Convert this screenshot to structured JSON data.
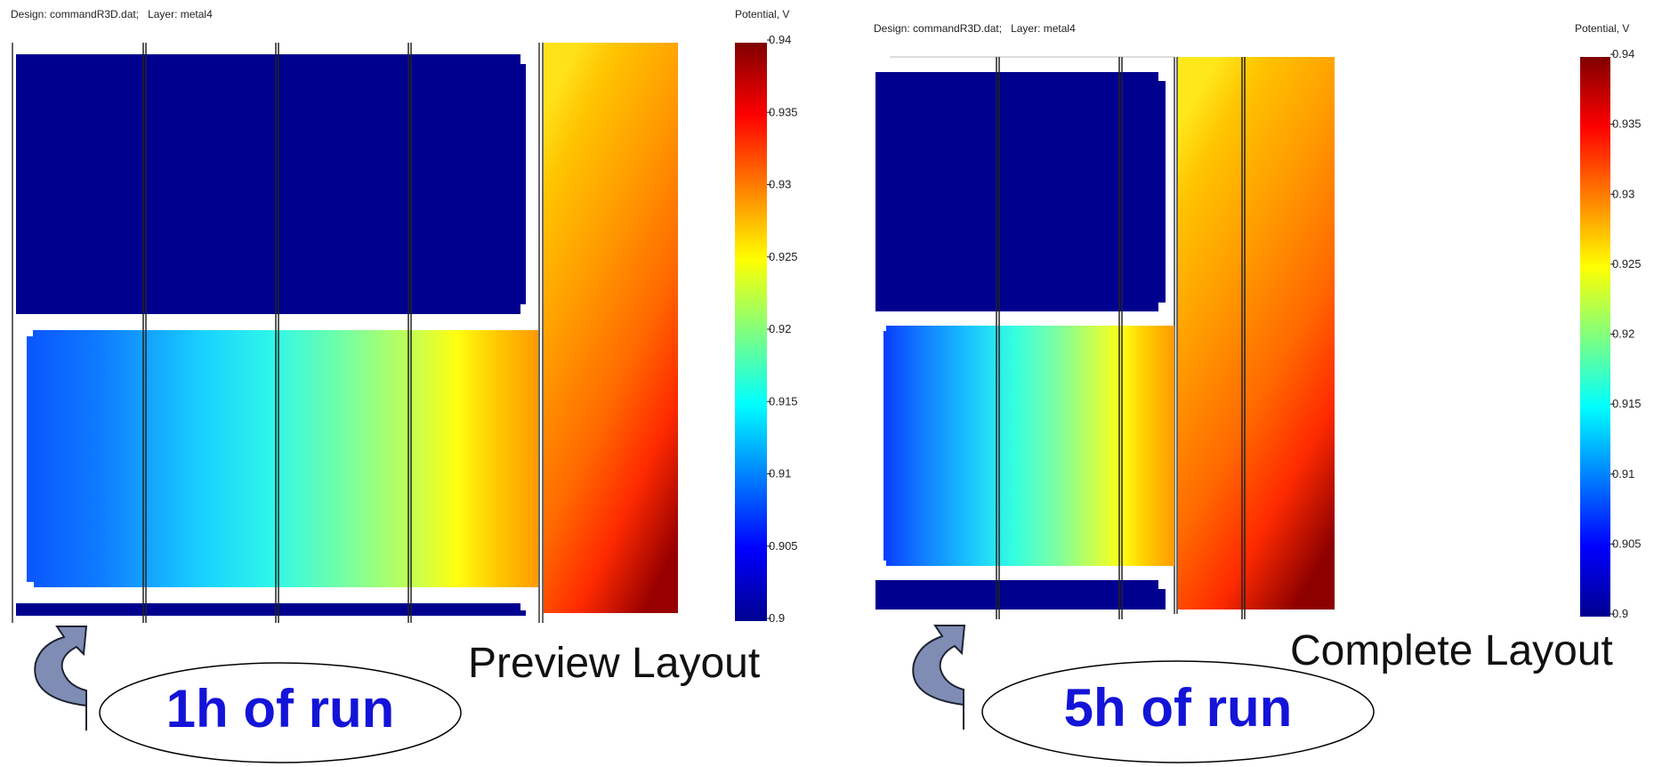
{
  "panels": [
    {
      "design_title": "Design: commandR3D.dat;   Layer: metal4",
      "colorbar_title": "Potential, V",
      "layout_label": "Preview Layout",
      "run_label": "1h of run"
    },
    {
      "design_title": "Design: commandR3D.dat;   Layer: metal4",
      "colorbar_title": "Potential, V",
      "layout_label": "Complete Layout",
      "run_label": "5h of run"
    }
  ],
  "colors": {
    "run_label": "#1414d8",
    "arrow_fill": "#7f8db5",
    "low_metal": "#00008f"
  },
  "chart_data": [
    {
      "type": "heatmap",
      "title": "Design: commandR3D.dat;   Layer: metal4",
      "colorbar_label": "Potential, V",
      "vmin": 0.9,
      "vmax": 0.94,
      "colormap": "jet",
      "colorbar_ticks": [
        "0.9",
        "0.905",
        "0.91",
        "0.915",
        "0.92",
        "0.925",
        "0.93",
        "0.935",
        "0.94"
      ],
      "regions": [
        {
          "region": "upper block",
          "potential": 0.9
        },
        {
          "region": "middle block left",
          "potential": 0.908
        },
        {
          "region": "middle block right",
          "potential": 0.928
        },
        {
          "region": "bottom strip",
          "potential": 0.9
        },
        {
          "region": "right column top",
          "potential": 0.927
        },
        {
          "region": "right column bottom",
          "potential": 0.94
        }
      ]
    },
    {
      "type": "heatmap",
      "title": "Design: commandR3D.dat;   Layer: metal4",
      "colorbar_label": "Potential, V",
      "vmin": 0.9,
      "vmax": 0.94,
      "colormap": "jet",
      "colorbar_ticks": [
        "0.9",
        "0.905",
        "0.91",
        "0.915",
        "0.92",
        "0.925",
        "0.93",
        "0.935",
        "0.94"
      ],
      "regions": [
        {
          "region": "upper block",
          "potential": 0.9
        },
        {
          "region": "middle block left",
          "potential": 0.907
        },
        {
          "region": "middle block right",
          "potential": 0.929
        },
        {
          "region": "bottom strip",
          "potential": 0.9
        },
        {
          "region": "right column top",
          "potential": 0.926
        },
        {
          "region": "right column bottom",
          "potential": 0.94
        }
      ]
    }
  ]
}
